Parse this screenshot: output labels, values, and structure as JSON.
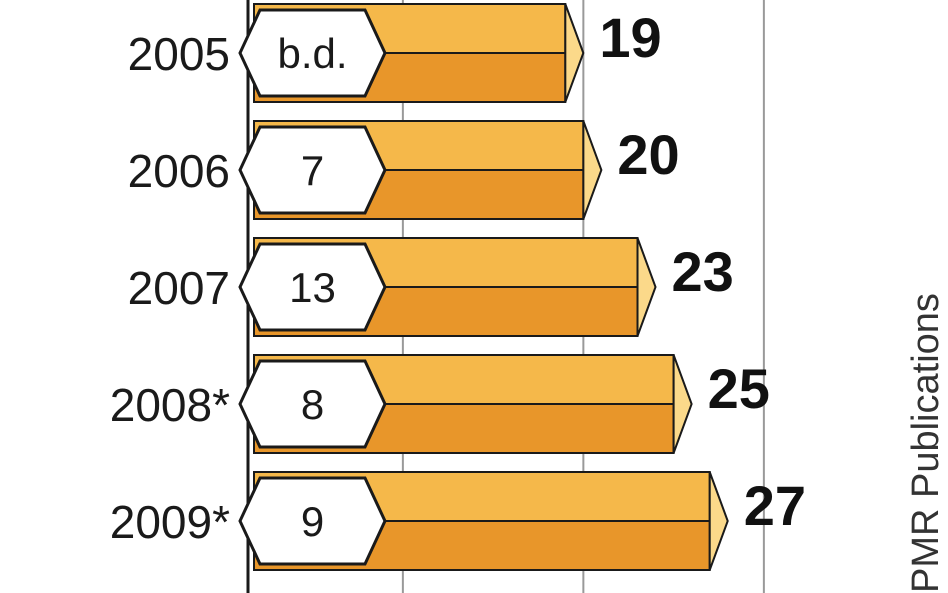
{
  "chart_data": {
    "type": "bar",
    "orientation": "horizontal",
    "categories": [
      "2005",
      "2006",
      "2007",
      "2008*",
      "2009*"
    ],
    "values": [
      19,
      20,
      23,
      25,
      27
    ],
    "value_labels": [
      "19",
      "20",
      "23",
      "25",
      "27"
    ],
    "secondary_values": [
      "b.d.",
      "7",
      "13",
      "8",
      "9"
    ],
    "grid": true,
    "source": "PMR Publications",
    "colors": {
      "bar_top": "#f5b84a",
      "bar_bottom": "#e8962a",
      "bar_end": "#fbd98a",
      "badge_fill": "#ffffff",
      "outline": "#1a1a1a",
      "grid": "#999999"
    }
  }
}
